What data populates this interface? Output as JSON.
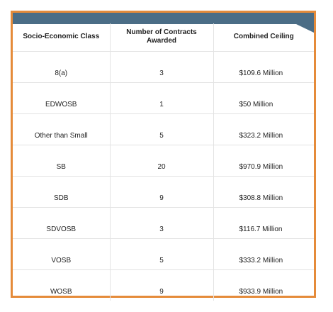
{
  "colors": {
    "frame_border": "#e58b3a",
    "header_band": "#4b6d86",
    "grid_lines": "#e3e3e3",
    "text": "#1f1f1f"
  },
  "table": {
    "headers": [
      "Socio-Economic Class",
      "Number of Contracts Awarded",
      "Combined Ceiling"
    ],
    "rows": [
      {
        "class": "8(a)",
        "contracts": "3",
        "ceiling": "$109.6 Million"
      },
      {
        "class": "EDWOSB",
        "contracts": "1",
        "ceiling": "$50 Million"
      },
      {
        "class": "Other than Small",
        "contracts": "5",
        "ceiling": "$323.2 Million"
      },
      {
        "class": "SB",
        "contracts": "20",
        "ceiling": "$970.9 Million"
      },
      {
        "class": "SDB",
        "contracts": "9",
        "ceiling": "$308.8 Million"
      },
      {
        "class": "SDVOSB",
        "contracts": "3",
        "ceiling": "$116.7 Million"
      },
      {
        "class": "VOSB",
        "contracts": "5",
        "ceiling": "$333.2 Million"
      },
      {
        "class": "WOSB",
        "contracts": "9",
        "ceiling": "$933.9 Million"
      }
    ]
  }
}
